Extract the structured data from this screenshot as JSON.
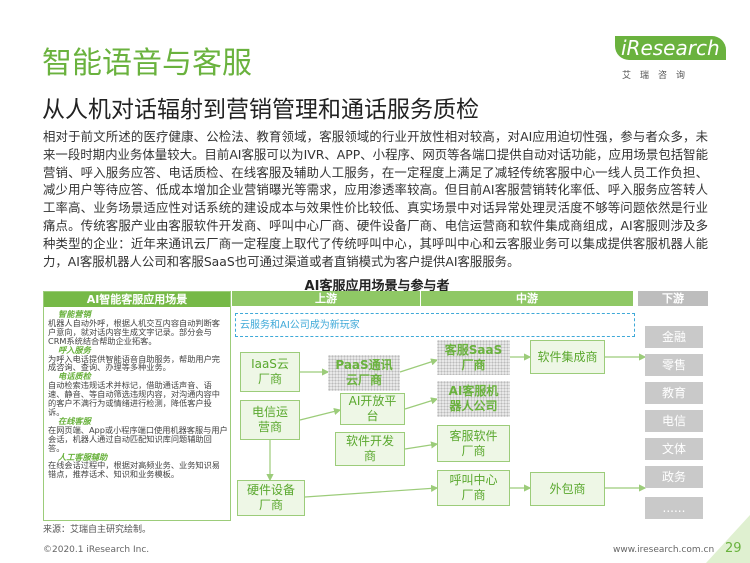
{
  "header": {
    "title": "智能语音与客服",
    "subtitle": "从人机对话辐射到营销管理和通话服务质检"
  },
  "logo": {
    "name": "iResearch",
    "cn": "艾瑞咨询"
  },
  "body": {
    "text": "相对于前文所述的医疗健康、公检法、教育领域，客服领域的行业开放性相对较高，对AI应用迫切性强，参与者众多，未来一段时期内业务体量较大。目前AI客服可以为IVR、APP、小程序、网页等各端口提供自动对话功能，应用场景包括智能营销、呼入服务应答、电话质检、在线客服及辅助人工服务，在一定程度上满足了减轻传统客服中心一线人员工作负担、减少用户等待应答、低成本增加企业营销曝光等需求，应用渗透率较高。但目前AI客服营销转化率低、呼入服务应答转人工率高、业务场景适应性对话系统的建设成本与效果性价比较低、真实场景中对话异常处理灵活度不够等问题依然是行业痛点。传统客服产业由客服软件开发商、呼叫中心厂商、硬件设备厂商、电信运营商和软件集成商组成，AI客服则涉及多种类型的企业：近年来通讯云厂商一定程度上取代了传统呼叫中心，其呼叫中心和云客服业务可以集成提供客服机器人能力，AI客服机器人公司和客服SaaS也可通过渠道或者直销模式为客户提供AI客服服务。"
  },
  "figure": {
    "title": "AI客服应用场景与参与者",
    "left": {
      "title": "AI智能客服应用场景",
      "items": [
        {
          "heading": "智能营销",
          "text": "机器人自动外呼，根据人机交互内容自动判断客户意向，就对话内容生成文字记录。部分会与CRM系统结合帮助企业拓客。"
        },
        {
          "heading": "呼入服务",
          "text": "为呼入电话提供智能语音自助服务，帮助用户完成咨询、查询、办理等多种业务。"
        },
        {
          "heading": "电话质检",
          "text": "自动检索违规话术并标记，借助通话声音、语速、静音、等自动筛选违规内容，对沟通内容中的客户不满行为或情绪进行检测，降低客户投诉。"
        },
        {
          "heading": "在线客服",
          "text": "在网页端、App或小程序端口使用机器客服与用户会话，机器人通过自动匹配知识库问题辅助回答。"
        },
        {
          "heading": "人工客服辅助",
          "text": "在线会话过程中，根据对高频业务、业务知识易错点，推荐话术、知识和业务模板。"
        }
      ]
    },
    "streams": [
      "上游",
      "中游",
      "下游"
    ],
    "note": "云服务和AI公司成为新玩家",
    "nodes": [
      {
        "label": "IaaS云厂商"
      },
      {
        "label": "电信运营商"
      },
      {
        "label": "硬件设备厂商"
      },
      {
        "label": "PaaS通讯云厂商"
      },
      {
        "label": "AI开放平台"
      },
      {
        "label": "软件开发商"
      },
      {
        "label": "客服SaaS厂商"
      },
      {
        "label": "AI客服机器人公司"
      },
      {
        "label": "客服软件厂商"
      },
      {
        "label": "呼叫中心厂商"
      },
      {
        "label": "软件集成商"
      },
      {
        "label": "外包商"
      }
    ],
    "downstream": [
      "金融",
      "零售",
      "教育",
      "电信",
      "文体",
      "政务",
      "......"
    ]
  },
  "source": "来源：艾瑞自主研究绘制。",
  "footer": {
    "copyright": "©2020.1 iResearch Inc.",
    "url": "www.iresearch.com.cn",
    "page": "29"
  }
}
